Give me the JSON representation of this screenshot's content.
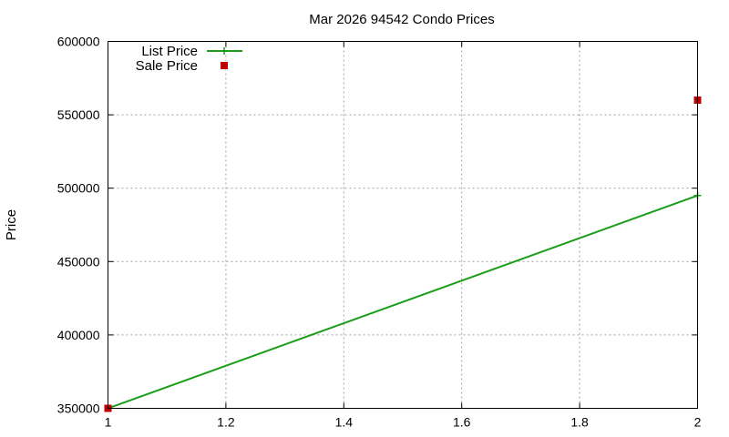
{
  "chart_data": {
    "type": "line",
    "title": "Mar 2026 94542 Condo Prices",
    "xlabel": "",
    "ylabel": "Price",
    "xlim": [
      1,
      2
    ],
    "ylim": [
      350000,
      600000
    ],
    "x_ticks": [
      "1",
      "1.2",
      "1.4",
      "1.6",
      "1.8",
      "2"
    ],
    "y_ticks": [
      "350000",
      "400000",
      "450000",
      "500000",
      "550000",
      "600000"
    ],
    "grid": true,
    "legend_position": "top-left",
    "series": [
      {
        "name": "List Price",
        "style": "line+cross",
        "color": "#1a9e1a",
        "x": [
          1,
          2
        ],
        "y": [
          350000,
          495000
        ]
      },
      {
        "name": "Sale Price",
        "style": "square-markers",
        "color": "#c00000",
        "x": [
          1,
          2
        ],
        "y": [
          350000,
          560000
        ]
      }
    ]
  }
}
